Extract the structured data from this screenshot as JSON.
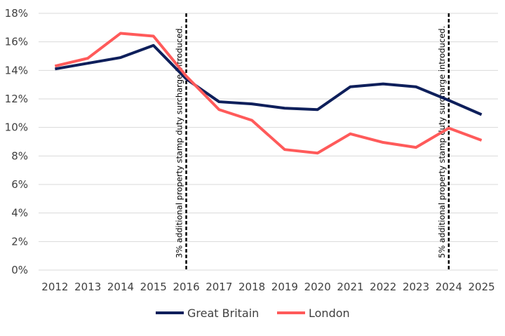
{
  "chart_data": {
    "type": "line",
    "title": "",
    "xlabel": "",
    "ylabel": "",
    "categories": [
      "2012",
      "2013",
      "2014",
      "2015",
      "2016",
      "2017",
      "2018",
      "2019",
      "2020",
      "2021",
      "2022",
      "2023",
      "2024",
      "2025"
    ],
    "ylim": [
      0,
      18
    ],
    "yticks": [
      0,
      2,
      4,
      6,
      8,
      10,
      12,
      14,
      16,
      18
    ],
    "ytick_labels": [
      "0%",
      "2%",
      "4%",
      "6%",
      "8%",
      "10%",
      "12%",
      "14%",
      "16%",
      "18%"
    ],
    "grid": true,
    "legend_position": "bottom",
    "series": [
      {
        "name": "Great Britain",
        "color": "#0E1F5B",
        "values": [
          14.1,
          14.5,
          14.9,
          15.75,
          13.4,
          11.8,
          11.65,
          11.35,
          11.25,
          12.85,
          13.05,
          12.85,
          11.9,
          10.9
        ]
      },
      {
        "name": "London",
        "color": "#FF5A5A",
        "values": [
          14.3,
          14.85,
          16.6,
          16.4,
          13.6,
          11.25,
          10.5,
          8.45,
          8.2,
          9.55,
          8.95,
          8.6,
          9.95,
          9.1
        ]
      }
    ],
    "annotations": [
      {
        "x": "2016",
        "text": "3% additional property stamp duty surcharge introduced."
      },
      {
        "x": "2024",
        "text": "5% additional property stamp duty surcharge introduced."
      }
    ]
  }
}
